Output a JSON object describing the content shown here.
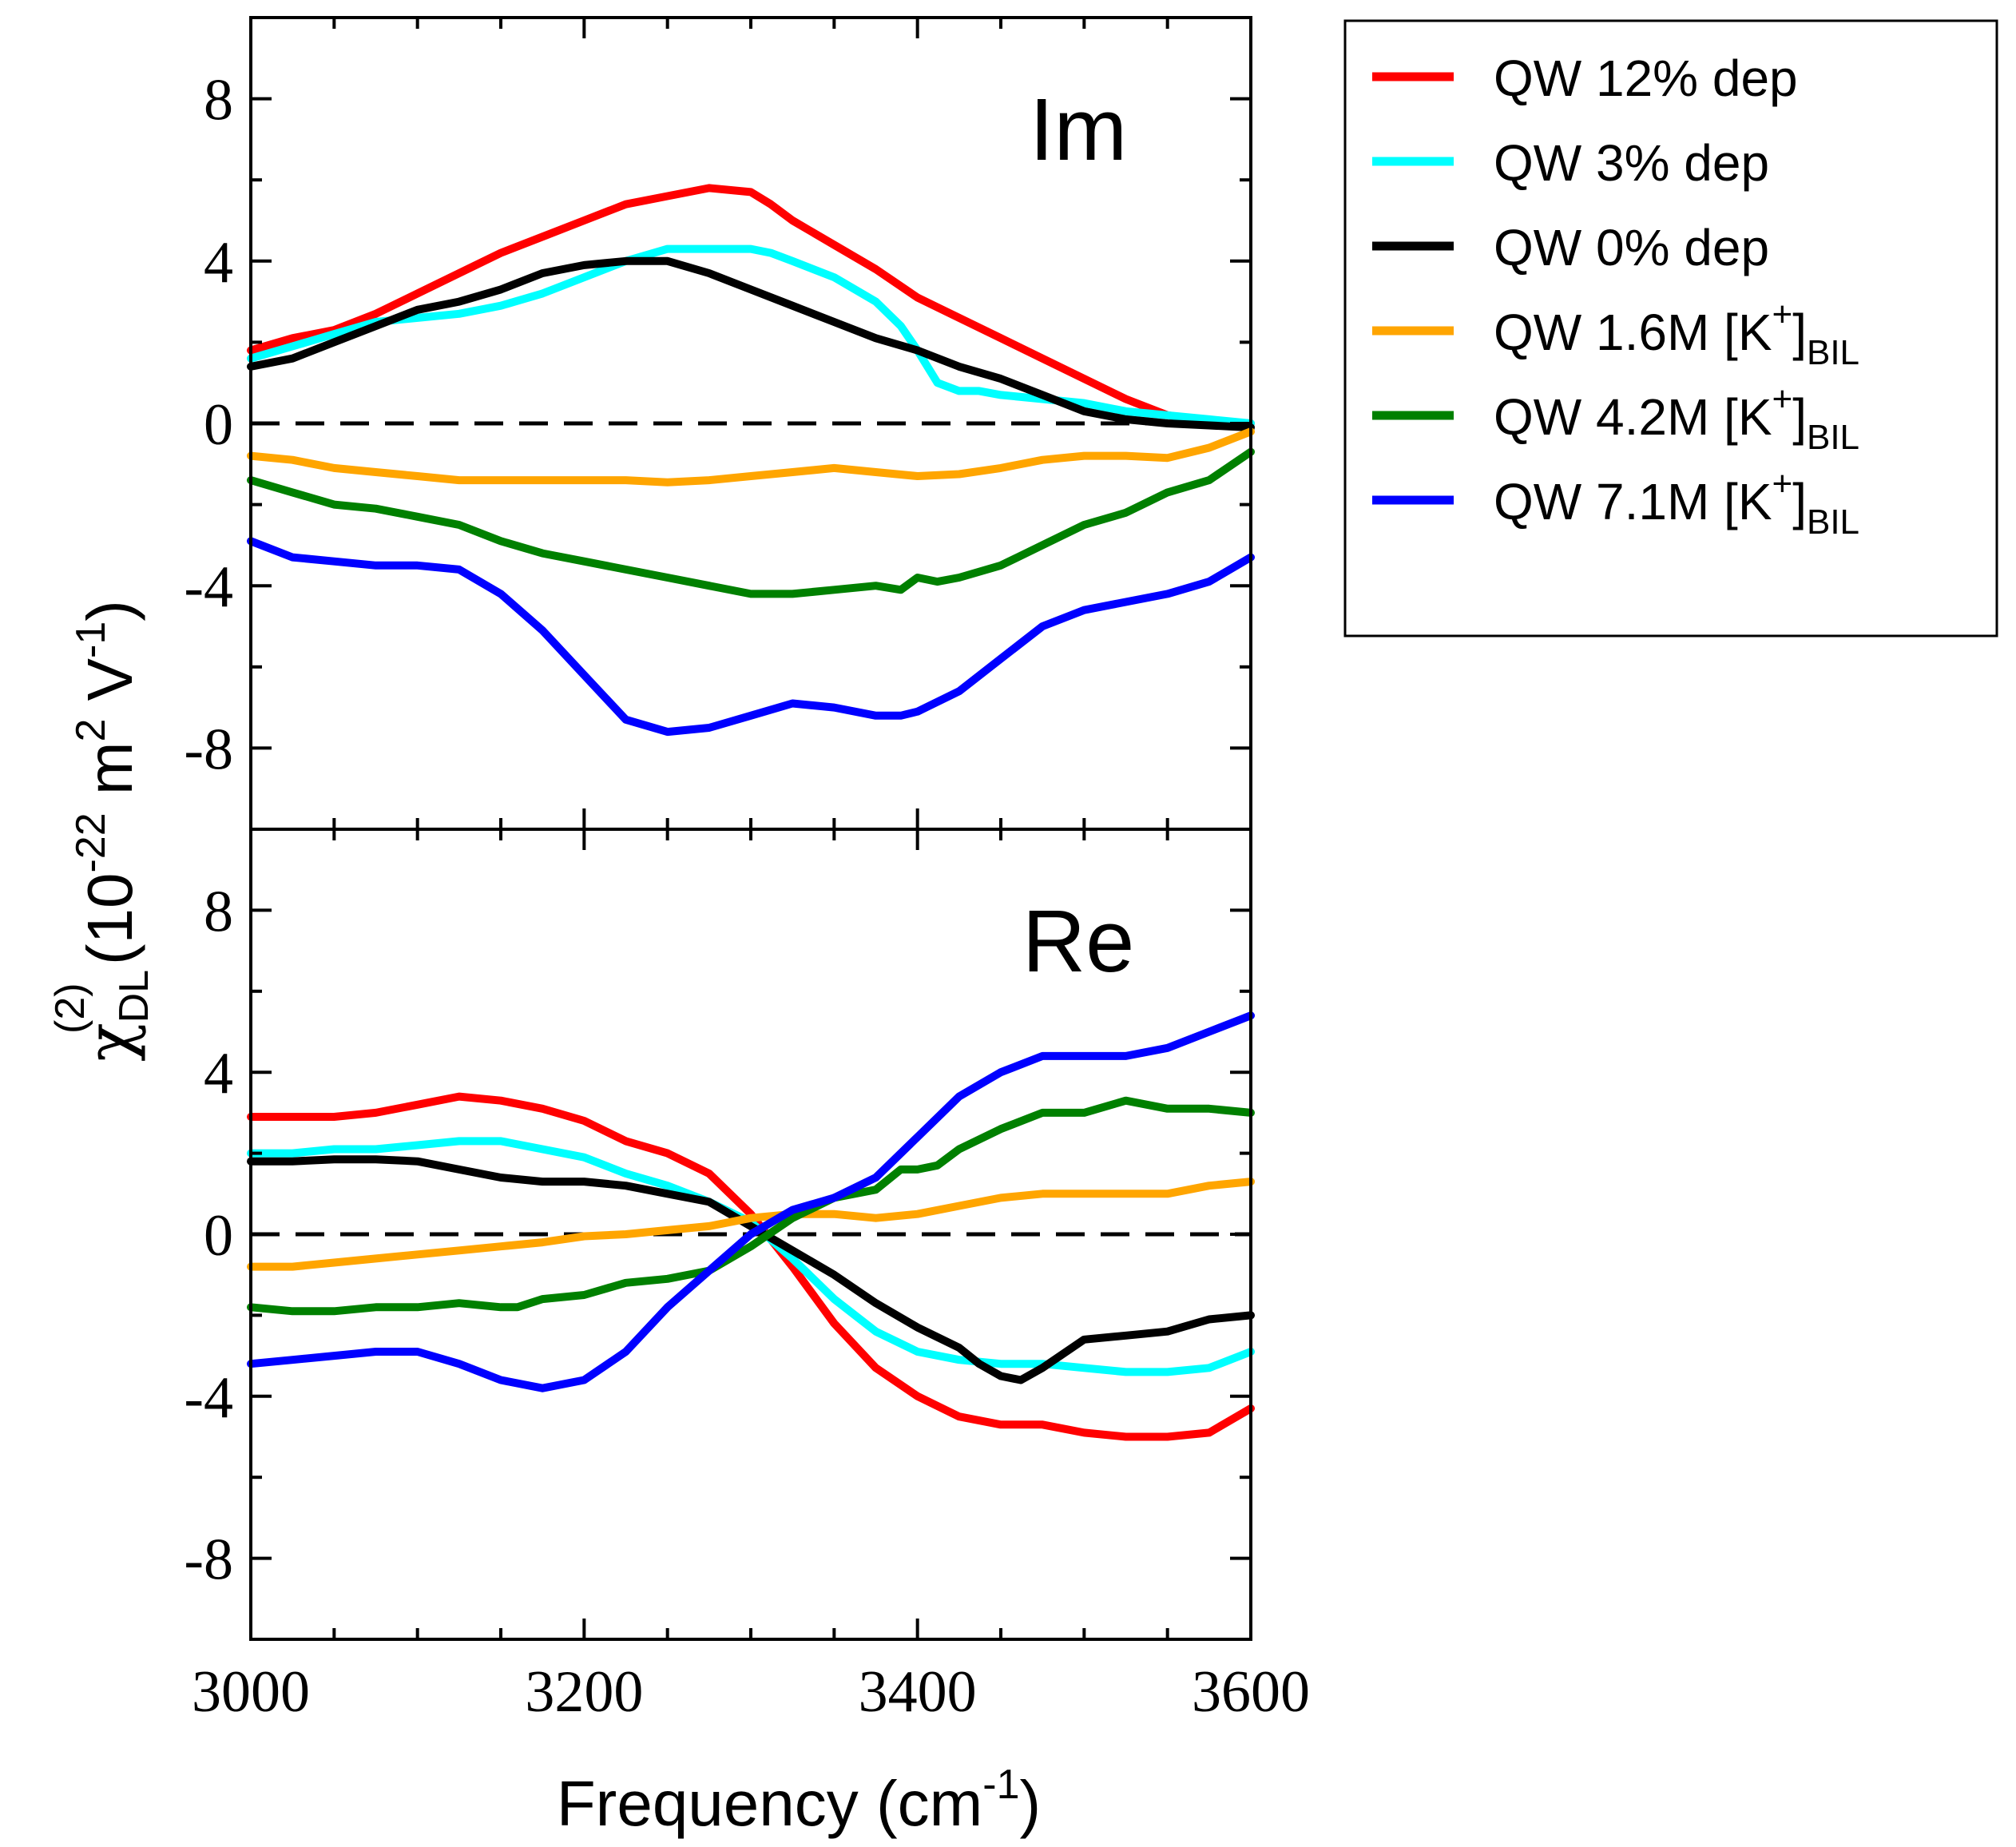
{
  "chart_data": [
    {
      "panel": "top",
      "type": "line",
      "annotation": "Im",
      "xlim": [
        3000,
        3600
      ],
      "ylim": [
        -10,
        10
      ],
      "xticks": [
        3000,
        3200,
        3400,
        3600
      ],
      "yticks": [
        -8,
        -4,
        0,
        4,
        8
      ],
      "ytick_labels": [
        "-8",
        "-4",
        "0",
        "4",
        "8"
      ],
      "zero_line": "dashed",
      "series": [
        {
          "name": "QW 12% dep",
          "color": "#ff0000",
          "x": [
            3000,
            3025,
            3050,
            3075,
            3100,
            3125,
            3150,
            3175,
            3200,
            3225,
            3250,
            3275,
            3300,
            3312,
            3325,
            3350,
            3375,
            3400,
            3425,
            3450,
            3475,
            3500,
            3525,
            3550,
            3575,
            3600
          ],
          "y": [
            1.8,
            2.1,
            2.3,
            2.7,
            3.2,
            3.7,
            4.2,
            4.6,
            5.0,
            5.4,
            5.6,
            5.8,
            5.7,
            5.4,
            5.0,
            4.4,
            3.8,
            3.1,
            2.6,
            2.1,
            1.6,
            1.1,
            0.6,
            0.2,
            0.05,
            0.0
          ]
        },
        {
          "name": "QW 3% dep",
          "color": "#00ffff",
          "x": [
            3000,
            3025,
            3050,
            3075,
            3100,
            3125,
            3150,
            3175,
            3200,
            3225,
            3250,
            3275,
            3300,
            3312,
            3325,
            3350,
            3375,
            3390,
            3400,
            3412,
            3425,
            3437,
            3450,
            3475,
            3500,
            3525,
            3550,
            3575,
            3600
          ],
          "y": [
            1.6,
            1.9,
            2.2,
            2.5,
            2.6,
            2.7,
            2.9,
            3.2,
            3.6,
            4.0,
            4.3,
            4.3,
            4.3,
            4.2,
            4.0,
            3.6,
            3.0,
            2.4,
            1.8,
            1.0,
            0.8,
            0.8,
            0.7,
            0.6,
            0.5,
            0.3,
            0.2,
            0.1,
            0.0
          ]
        },
        {
          "name": "QW 0% dep",
          "color": "#000000",
          "x": [
            3000,
            3025,
            3050,
            3075,
            3100,
            3125,
            3150,
            3175,
            3200,
            3225,
            3250,
            3275,
            3300,
            3325,
            3350,
            3375,
            3400,
            3425,
            3450,
            3475,
            3500,
            3525,
            3550,
            3575,
            3600
          ],
          "y": [
            1.4,
            1.6,
            2.0,
            2.4,
            2.8,
            3.0,
            3.3,
            3.7,
            3.9,
            4.0,
            4.0,
            3.7,
            3.3,
            2.9,
            2.5,
            2.1,
            1.8,
            1.4,
            1.1,
            0.7,
            0.3,
            0.1,
            0.0,
            -0.05,
            -0.1
          ]
        },
        {
          "name": "QW 1.6M [K+]BIL",
          "color": "#ffa500",
          "x": [
            3000,
            3025,
            3050,
            3075,
            3100,
            3125,
            3150,
            3175,
            3200,
            3225,
            3250,
            3275,
            3300,
            3325,
            3350,
            3375,
            3400,
            3425,
            3450,
            3475,
            3500,
            3525,
            3550,
            3575,
            3600
          ],
          "y": [
            -0.8,
            -0.9,
            -1.1,
            -1.2,
            -1.3,
            -1.4,
            -1.4,
            -1.4,
            -1.4,
            -1.4,
            -1.45,
            -1.4,
            -1.3,
            -1.2,
            -1.1,
            -1.2,
            -1.3,
            -1.25,
            -1.1,
            -0.9,
            -0.8,
            -0.8,
            -0.85,
            -0.6,
            -0.2
          ]
        },
        {
          "name": "QW 4.2M [K+]BIL",
          "color": "#008000",
          "x": [
            3000,
            3025,
            3050,
            3075,
            3100,
            3125,
            3150,
            3175,
            3200,
            3225,
            3250,
            3275,
            3300,
            3325,
            3350,
            3375,
            3390,
            3400,
            3412,
            3425,
            3450,
            3475,
            3500,
            3525,
            3550,
            3575,
            3600
          ],
          "y": [
            -1.4,
            -1.7,
            -2.0,
            -2.1,
            -2.3,
            -2.5,
            -2.9,
            -3.2,
            -3.4,
            -3.6,
            -3.8,
            -4.0,
            -4.2,
            -4.2,
            -4.1,
            -4.0,
            -4.1,
            -3.8,
            -3.9,
            -3.8,
            -3.5,
            -3.0,
            -2.5,
            -2.2,
            -1.7,
            -1.4,
            -0.7
          ]
        },
        {
          "name": "QW 7.1M [K+]BIL",
          "color": "#0000ff",
          "x": [
            3000,
            3025,
            3050,
            3075,
            3100,
            3125,
            3150,
            3175,
            3200,
            3225,
            3250,
            3275,
            3300,
            3325,
            3350,
            3375,
            3390,
            3400,
            3425,
            3450,
            3475,
            3500,
            3525,
            3550,
            3575,
            3600
          ],
          "y": [
            -2.9,
            -3.3,
            -3.4,
            -3.5,
            -3.5,
            -3.6,
            -4.2,
            -5.1,
            -6.2,
            -7.3,
            -7.6,
            -7.5,
            -7.2,
            -6.9,
            -7.0,
            -7.2,
            -7.2,
            -7.1,
            -6.6,
            -5.8,
            -5.0,
            -4.6,
            -4.4,
            -4.2,
            -3.9,
            -3.3
          ]
        }
      ]
    },
    {
      "panel": "bottom",
      "type": "line",
      "annotation": "Re",
      "xlim": [
        3000,
        3600
      ],
      "ylim": [
        -10,
        10
      ],
      "xticks": [
        3000,
        3200,
        3400,
        3600
      ],
      "xtick_labels": [
        "3000",
        "3200",
        "3400",
        "3600"
      ],
      "yticks": [
        -8,
        -4,
        0,
        4,
        8
      ],
      "ytick_labels": [
        "-8",
        "-4",
        "0",
        "4",
        "8"
      ],
      "zero_line": "dashed",
      "series": [
        {
          "name": "QW 12% dep",
          "color": "#ff0000",
          "x": [
            3000,
            3025,
            3050,
            3075,
            3100,
            3125,
            3150,
            3175,
            3200,
            3225,
            3250,
            3275,
            3300,
            3325,
            3350,
            3375,
            3400,
            3425,
            3450,
            3475,
            3500,
            3525,
            3550,
            3575,
            3600
          ],
          "y": [
            2.9,
            2.9,
            2.9,
            3.0,
            3.2,
            3.4,
            3.3,
            3.1,
            2.8,
            2.3,
            2.0,
            1.5,
            0.5,
            -0.8,
            -2.2,
            -3.3,
            -4.0,
            -4.5,
            -4.7,
            -4.7,
            -4.9,
            -5.0,
            -5.0,
            -4.9,
            -4.3
          ]
        },
        {
          "name": "QW 3% dep",
          "color": "#00ffff",
          "x": [
            3000,
            3025,
            3050,
            3075,
            3100,
            3125,
            3150,
            3175,
            3200,
            3225,
            3250,
            3275,
            3300,
            3325,
            3350,
            3375,
            3400,
            3425,
            3450,
            3475,
            3500,
            3525,
            3550,
            3575,
            3600
          ],
          "y": [
            2.0,
            2.0,
            2.1,
            2.1,
            2.2,
            2.3,
            2.3,
            2.1,
            1.9,
            1.5,
            1.2,
            0.8,
            0.3,
            -0.6,
            -1.6,
            -2.4,
            -2.9,
            -3.1,
            -3.2,
            -3.2,
            -3.3,
            -3.4,
            -3.4,
            -3.3,
            -2.9
          ]
        },
        {
          "name": "QW 0% dep",
          "color": "#000000",
          "x": [
            3000,
            3025,
            3050,
            3075,
            3100,
            3125,
            3150,
            3175,
            3200,
            3225,
            3250,
            3275,
            3300,
            3325,
            3350,
            3375,
            3400,
            3425,
            3437,
            3450,
            3462,
            3475,
            3500,
            3525,
            3550,
            3575,
            3600
          ],
          "y": [
            1.8,
            1.8,
            1.85,
            1.85,
            1.8,
            1.6,
            1.4,
            1.3,
            1.3,
            1.2,
            1.0,
            0.8,
            0.2,
            -0.4,
            -1.0,
            -1.7,
            -2.3,
            -2.8,
            -3.2,
            -3.5,
            -3.6,
            -3.3,
            -2.6,
            -2.5,
            -2.4,
            -2.1,
            -2.0
          ]
        },
        {
          "name": "QW 1.6M [K+]BIL",
          "color": "#ffa500",
          "x": [
            3000,
            3025,
            3050,
            3075,
            3100,
            3125,
            3150,
            3175,
            3200,
            3225,
            3250,
            3275,
            3300,
            3325,
            3350,
            3375,
            3400,
            3425,
            3450,
            3475,
            3500,
            3525,
            3550,
            3575,
            3600
          ],
          "y": [
            -0.8,
            -0.8,
            -0.7,
            -0.6,
            -0.5,
            -0.4,
            -0.3,
            -0.2,
            -0.05,
            0.0,
            0.1,
            0.2,
            0.4,
            0.5,
            0.5,
            0.4,
            0.5,
            0.7,
            0.9,
            1.0,
            1.0,
            1.0,
            1.0,
            1.2,
            1.3
          ]
        },
        {
          "name": "QW 4.2M [K+]BIL",
          "color": "#008000",
          "x": [
            3000,
            3025,
            3050,
            3075,
            3100,
            3125,
            3150,
            3160,
            3175,
            3200,
            3225,
            3250,
            3275,
            3300,
            3325,
            3350,
            3375,
            3390,
            3400,
            3412,
            3425,
            3450,
            3475,
            3500,
            3525,
            3550,
            3575,
            3600
          ],
          "y": [
            -1.8,
            -1.9,
            -1.9,
            -1.8,
            -1.8,
            -1.7,
            -1.8,
            -1.8,
            -1.6,
            -1.5,
            -1.2,
            -1.1,
            -0.9,
            -0.3,
            0.4,
            0.9,
            1.1,
            1.6,
            1.6,
            1.7,
            2.1,
            2.6,
            3.0,
            3.0,
            3.3,
            3.1,
            3.1,
            3.0
          ]
        },
        {
          "name": "QW 7.1M [K+]BIL",
          "color": "#0000ff",
          "x": [
            3000,
            3025,
            3050,
            3075,
            3100,
            3125,
            3150,
            3175,
            3200,
            3225,
            3250,
            3275,
            3300,
            3325,
            3350,
            3375,
            3400,
            3425,
            3450,
            3475,
            3500,
            3525,
            3550,
            3575,
            3600
          ],
          "y": [
            -3.2,
            -3.1,
            -3.0,
            -2.9,
            -2.9,
            -3.2,
            -3.6,
            -3.8,
            -3.6,
            -2.9,
            -1.8,
            -0.9,
            0.0,
            0.6,
            0.9,
            1.4,
            2.4,
            3.4,
            4.0,
            4.4,
            4.4,
            4.4,
            4.6,
            5.0,
            5.4
          ]
        }
      ]
    }
  ],
  "axes": {
    "xlabel_main": "Frequency (cm",
    "xlabel_sup": "-1",
    "xlabel_close": ")",
    "ylabel_chi": "χ",
    "ylabel_sub": "DL",
    "ylabel_sup": "(2)",
    "ylabel_open": " (10",
    "ylabel_exp": "-22",
    "ylabel_m": " m",
    "ylabel_m_exp": "2",
    "ylabel_v": " V",
    "ylabel_v_exp": "-1",
    "ylabel_close": ")"
  },
  "legend": {
    "placement": "upper-right outside",
    "entries": [
      {
        "color": "#ff0000",
        "text": "QW 12% dep"
      },
      {
        "color": "#00ffff",
        "text": "QW 3% dep"
      },
      {
        "color": "#000000",
        "text": "QW 0% dep"
      },
      {
        "color": "#ffa500",
        "text": "QW 1.6M [K",
        "sup": "+",
        "close": "]",
        "sub": "BIL"
      },
      {
        "color": "#008000",
        "text": "QW 4.2M [K",
        "sup": "+",
        "close": "]",
        "sub": "BIL"
      },
      {
        "color": "#0000ff",
        "text": "QW 7.1M [K",
        "sup": "+",
        "close": "]",
        "sub": "BIL"
      }
    ]
  }
}
